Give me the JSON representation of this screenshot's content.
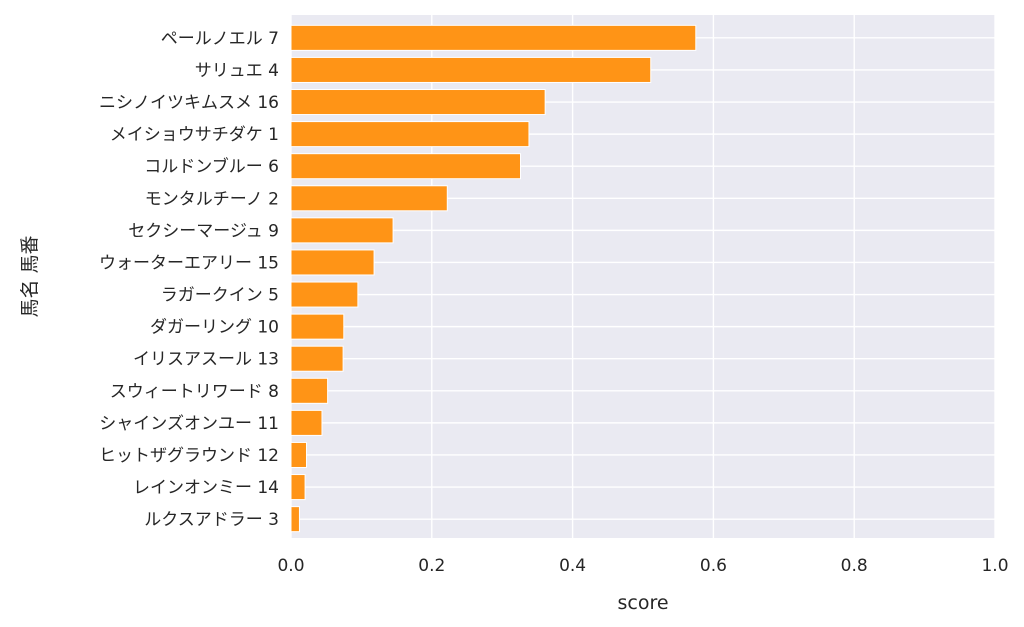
{
  "chart_data": {
    "type": "bar",
    "orientation": "horizontal",
    "title": "",
    "xlabel": "score",
    "ylabel": "馬名 馬番",
    "xlim": [
      0.0,
      1.0
    ],
    "xticks": [
      "0.0",
      "0.2",
      "0.4",
      "0.6",
      "0.8",
      "1.0"
    ],
    "grid": true,
    "bar_color": "#ff9416",
    "background_color": "#eaeaf2",
    "grid_color": "#ffffff",
    "categories": [
      "ペールノエル 7",
      "サリュエ 4",
      "ニシノイツキムスメ 16",
      "メイショウサチダケ 1",
      "コルドンブルー 6",
      "モンタルチーノ 2",
      "セクシーマージュ 9",
      "ウォーターエアリー 15",
      "ラガークイン 5",
      "ダガーリング 10",
      "イリスアスール 13",
      "スウィートリワード 8",
      "シャインズオンユー 11",
      "ヒットザグラウンド 12",
      "レインオンミー 14",
      "ルクスアドラー 3"
    ],
    "values": [
      0.575,
      0.511,
      0.361,
      0.338,
      0.326,
      0.222,
      0.145,
      0.118,
      0.095,
      0.075,
      0.074,
      0.052,
      0.044,
      0.022,
      0.02,
      0.012
    ]
  }
}
